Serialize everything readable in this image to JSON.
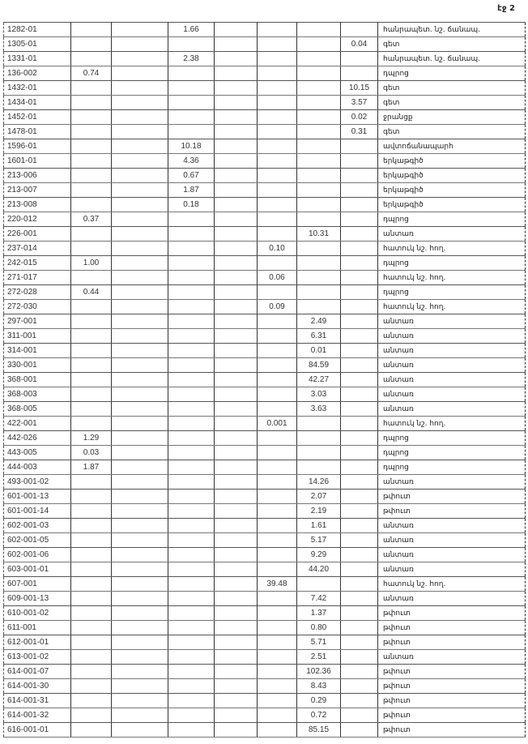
{
  "page_label": "էջ 2",
  "rows": [
    {
      "code": "1282-01",
      "cols": [
        "",
        "",
        "1.66",
        "",
        "",
        "",
        ""
      ],
      "type": "հանրապետ. նշ. ճանապ."
    },
    {
      "code": "1305-01",
      "cols": [
        "",
        "",
        "",
        "",
        "",
        "",
        "0.04"
      ],
      "type": "գետ"
    },
    {
      "code": "1331-01",
      "cols": [
        "",
        "",
        "2.38",
        "",
        "",
        "",
        ""
      ],
      "type": "հանրապետ. նշ. ճանապ."
    },
    {
      "code": "136-002",
      "cols": [
        "0.74",
        "",
        "",
        "",
        "",
        "",
        ""
      ],
      "type": "դպրոց"
    },
    {
      "code": "1432-01",
      "cols": [
        "",
        "",
        "",
        "",
        "",
        "",
        "10.15"
      ],
      "type": "գետ"
    },
    {
      "code": "1434-01",
      "cols": [
        "",
        "",
        "",
        "",
        "",
        "",
        "3.57"
      ],
      "type": "գետ"
    },
    {
      "code": "1452-01",
      "cols": [
        "",
        "",
        "",
        "",
        "",
        "",
        "0.02"
      ],
      "type": "ջրանցք"
    },
    {
      "code": "1478-01",
      "cols": [
        "",
        "",
        "",
        "",
        "",
        "",
        "0.31"
      ],
      "type": "գետ"
    },
    {
      "code": "1596-01",
      "cols": [
        "",
        "",
        "10.18",
        "",
        "",
        "",
        ""
      ],
      "type": "ավտոճանապարհ"
    },
    {
      "code": "1601-01",
      "cols": [
        "",
        "",
        "4.36",
        "",
        "",
        "",
        ""
      ],
      "type": "երկաթգիծ"
    },
    {
      "code": "213-006",
      "cols": [
        "",
        "",
        "0.67",
        "",
        "",
        "",
        ""
      ],
      "type": "երկաթգիծ"
    },
    {
      "code": "213-007",
      "cols": [
        "",
        "",
        "1.87",
        "",
        "",
        "",
        ""
      ],
      "type": "երկաթգիծ"
    },
    {
      "code": "213-008",
      "cols": [
        "",
        "",
        "0.18",
        "",
        "",
        "",
        ""
      ],
      "type": "երկաթգիծ"
    },
    {
      "code": "220-012",
      "cols": [
        "0.37",
        "",
        "",
        "",
        "",
        "",
        ""
      ],
      "type": "դպրոց"
    },
    {
      "code": "226-001",
      "cols": [
        "",
        "",
        "",
        "",
        "",
        "10.31",
        ""
      ],
      "type": "անտառ"
    },
    {
      "code": "237-014",
      "cols": [
        "",
        "",
        "",
        "",
        "0.10",
        "",
        ""
      ],
      "type": "հատուկ նշ. հող."
    },
    {
      "code": "242-015",
      "cols": [
        "1.00",
        "",
        "",
        "",
        "",
        "",
        ""
      ],
      "type": "դպրոց"
    },
    {
      "code": "271-017",
      "cols": [
        "",
        "",
        "",
        "",
        "0.06",
        "",
        ""
      ],
      "type": "հատուկ նշ. հող."
    },
    {
      "code": "272-028",
      "cols": [
        "0.44",
        "",
        "",
        "",
        "",
        "",
        ""
      ],
      "type": "դպրոց"
    },
    {
      "code": "272-030",
      "cols": [
        "",
        "",
        "",
        "",
        "0.09",
        "",
        ""
      ],
      "type": "հատուկ նշ. հող."
    },
    {
      "code": "297-001",
      "cols": [
        "",
        "",
        "",
        "",
        "",
        "2.49",
        ""
      ],
      "type": "անտառ"
    },
    {
      "code": "311-001",
      "cols": [
        "",
        "",
        "",
        "",
        "",
        "6.31",
        ""
      ],
      "type": "անտառ"
    },
    {
      "code": "314-001",
      "cols": [
        "",
        "",
        "",
        "",
        "",
        "0.01",
        ""
      ],
      "type": "անտառ"
    },
    {
      "code": "330-001",
      "cols": [
        "",
        "",
        "",
        "",
        "",
        "84.59",
        ""
      ],
      "type": "անտառ"
    },
    {
      "code": "368-001",
      "cols": [
        "",
        "",
        "",
        "",
        "",
        "42.27",
        ""
      ],
      "type": "անտառ"
    },
    {
      "code": "368-003",
      "cols": [
        "",
        "",
        "",
        "",
        "",
        "3.03",
        ""
      ],
      "type": "անտառ"
    },
    {
      "code": "368-005",
      "cols": [
        "",
        "",
        "",
        "",
        "",
        "3.63",
        ""
      ],
      "type": "անտառ"
    },
    {
      "code": "422-001",
      "cols": [
        "",
        "",
        "",
        "",
        "0.001",
        "",
        ""
      ],
      "type": "հատուկ նշ. հող."
    },
    {
      "code": "442-026",
      "cols": [
        "1.29",
        "",
        "",
        "",
        "",
        "",
        ""
      ],
      "type": "դպրոց"
    },
    {
      "code": "443-005",
      "cols": [
        "0.03",
        "",
        "",
        "",
        "",
        "",
        ""
      ],
      "type": "դպրոց"
    },
    {
      "code": "444-003",
      "cols": [
        "1.87",
        "",
        "",
        "",
        "",
        "",
        ""
      ],
      "type": "դպրոց"
    },
    {
      "code": "493-001-02",
      "cols": [
        "",
        "",
        "",
        "",
        "",
        "14.26",
        ""
      ],
      "type": "անտառ"
    },
    {
      "code": "601-001-13",
      "cols": [
        "",
        "",
        "",
        "",
        "",
        "2.07",
        ""
      ],
      "type": "թփուտ"
    },
    {
      "code": "601-001-14",
      "cols": [
        "",
        "",
        "",
        "",
        "",
        "2.19",
        ""
      ],
      "type": "թփուտ"
    },
    {
      "code": "602-001-03",
      "cols": [
        "",
        "",
        "",
        "",
        "",
        "1.61",
        ""
      ],
      "type": "անտառ"
    },
    {
      "code": "602-001-05",
      "cols": [
        "",
        "",
        "",
        "",
        "",
        "5.17",
        ""
      ],
      "type": "անտառ"
    },
    {
      "code": "602-001-06",
      "cols": [
        "",
        "",
        "",
        "",
        "",
        "9.29",
        ""
      ],
      "type": "անտառ"
    },
    {
      "code": "603-001-01",
      "cols": [
        "",
        "",
        "",
        "",
        "",
        "44.20",
        ""
      ],
      "type": "անտառ"
    },
    {
      "code": "607-001",
      "cols": [
        "",
        "",
        "",
        "",
        "39.48",
        "",
        ""
      ],
      "type": "հատուկ նշ. հող."
    },
    {
      "code": "609-001-13",
      "cols": [
        "",
        "",
        "",
        "",
        "",
        "7.42",
        ""
      ],
      "type": "անտառ"
    },
    {
      "code": "610-001-02",
      "cols": [
        "",
        "",
        "",
        "",
        "",
        "1.37",
        ""
      ],
      "type": "թփուտ"
    },
    {
      "code": "611-001",
      "cols": [
        "",
        "",
        "",
        "",
        "",
        "0.80",
        ""
      ],
      "type": "թփուտ"
    },
    {
      "code": "612-001-01",
      "cols": [
        "",
        "",
        "",
        "",
        "",
        "5.71",
        ""
      ],
      "type": "թփուտ"
    },
    {
      "code": "613-001-02",
      "cols": [
        "",
        "",
        "",
        "",
        "",
        "2.51",
        ""
      ],
      "type": "անտառ"
    },
    {
      "code": "614-001-07",
      "cols": [
        "",
        "",
        "",
        "",
        "",
        "102.36",
        ""
      ],
      "type": "թփուտ"
    },
    {
      "code": "614-001-30",
      "cols": [
        "",
        "",
        "",
        "",
        "",
        "8.43",
        ""
      ],
      "type": "թփուտ"
    },
    {
      "code": "614-001-31",
      "cols": [
        "",
        "",
        "",
        "",
        "",
        "0.29",
        ""
      ],
      "type": "թփուտ"
    },
    {
      "code": "614-001-32",
      "cols": [
        "",
        "",
        "",
        "",
        "",
        "0.72",
        ""
      ],
      "type": "թփուտ"
    },
    {
      "code": "616-001-01",
      "cols": [
        "",
        "",
        "",
        "",
        "",
        "85.15",
        ""
      ],
      "type": "թփուտ"
    }
  ]
}
